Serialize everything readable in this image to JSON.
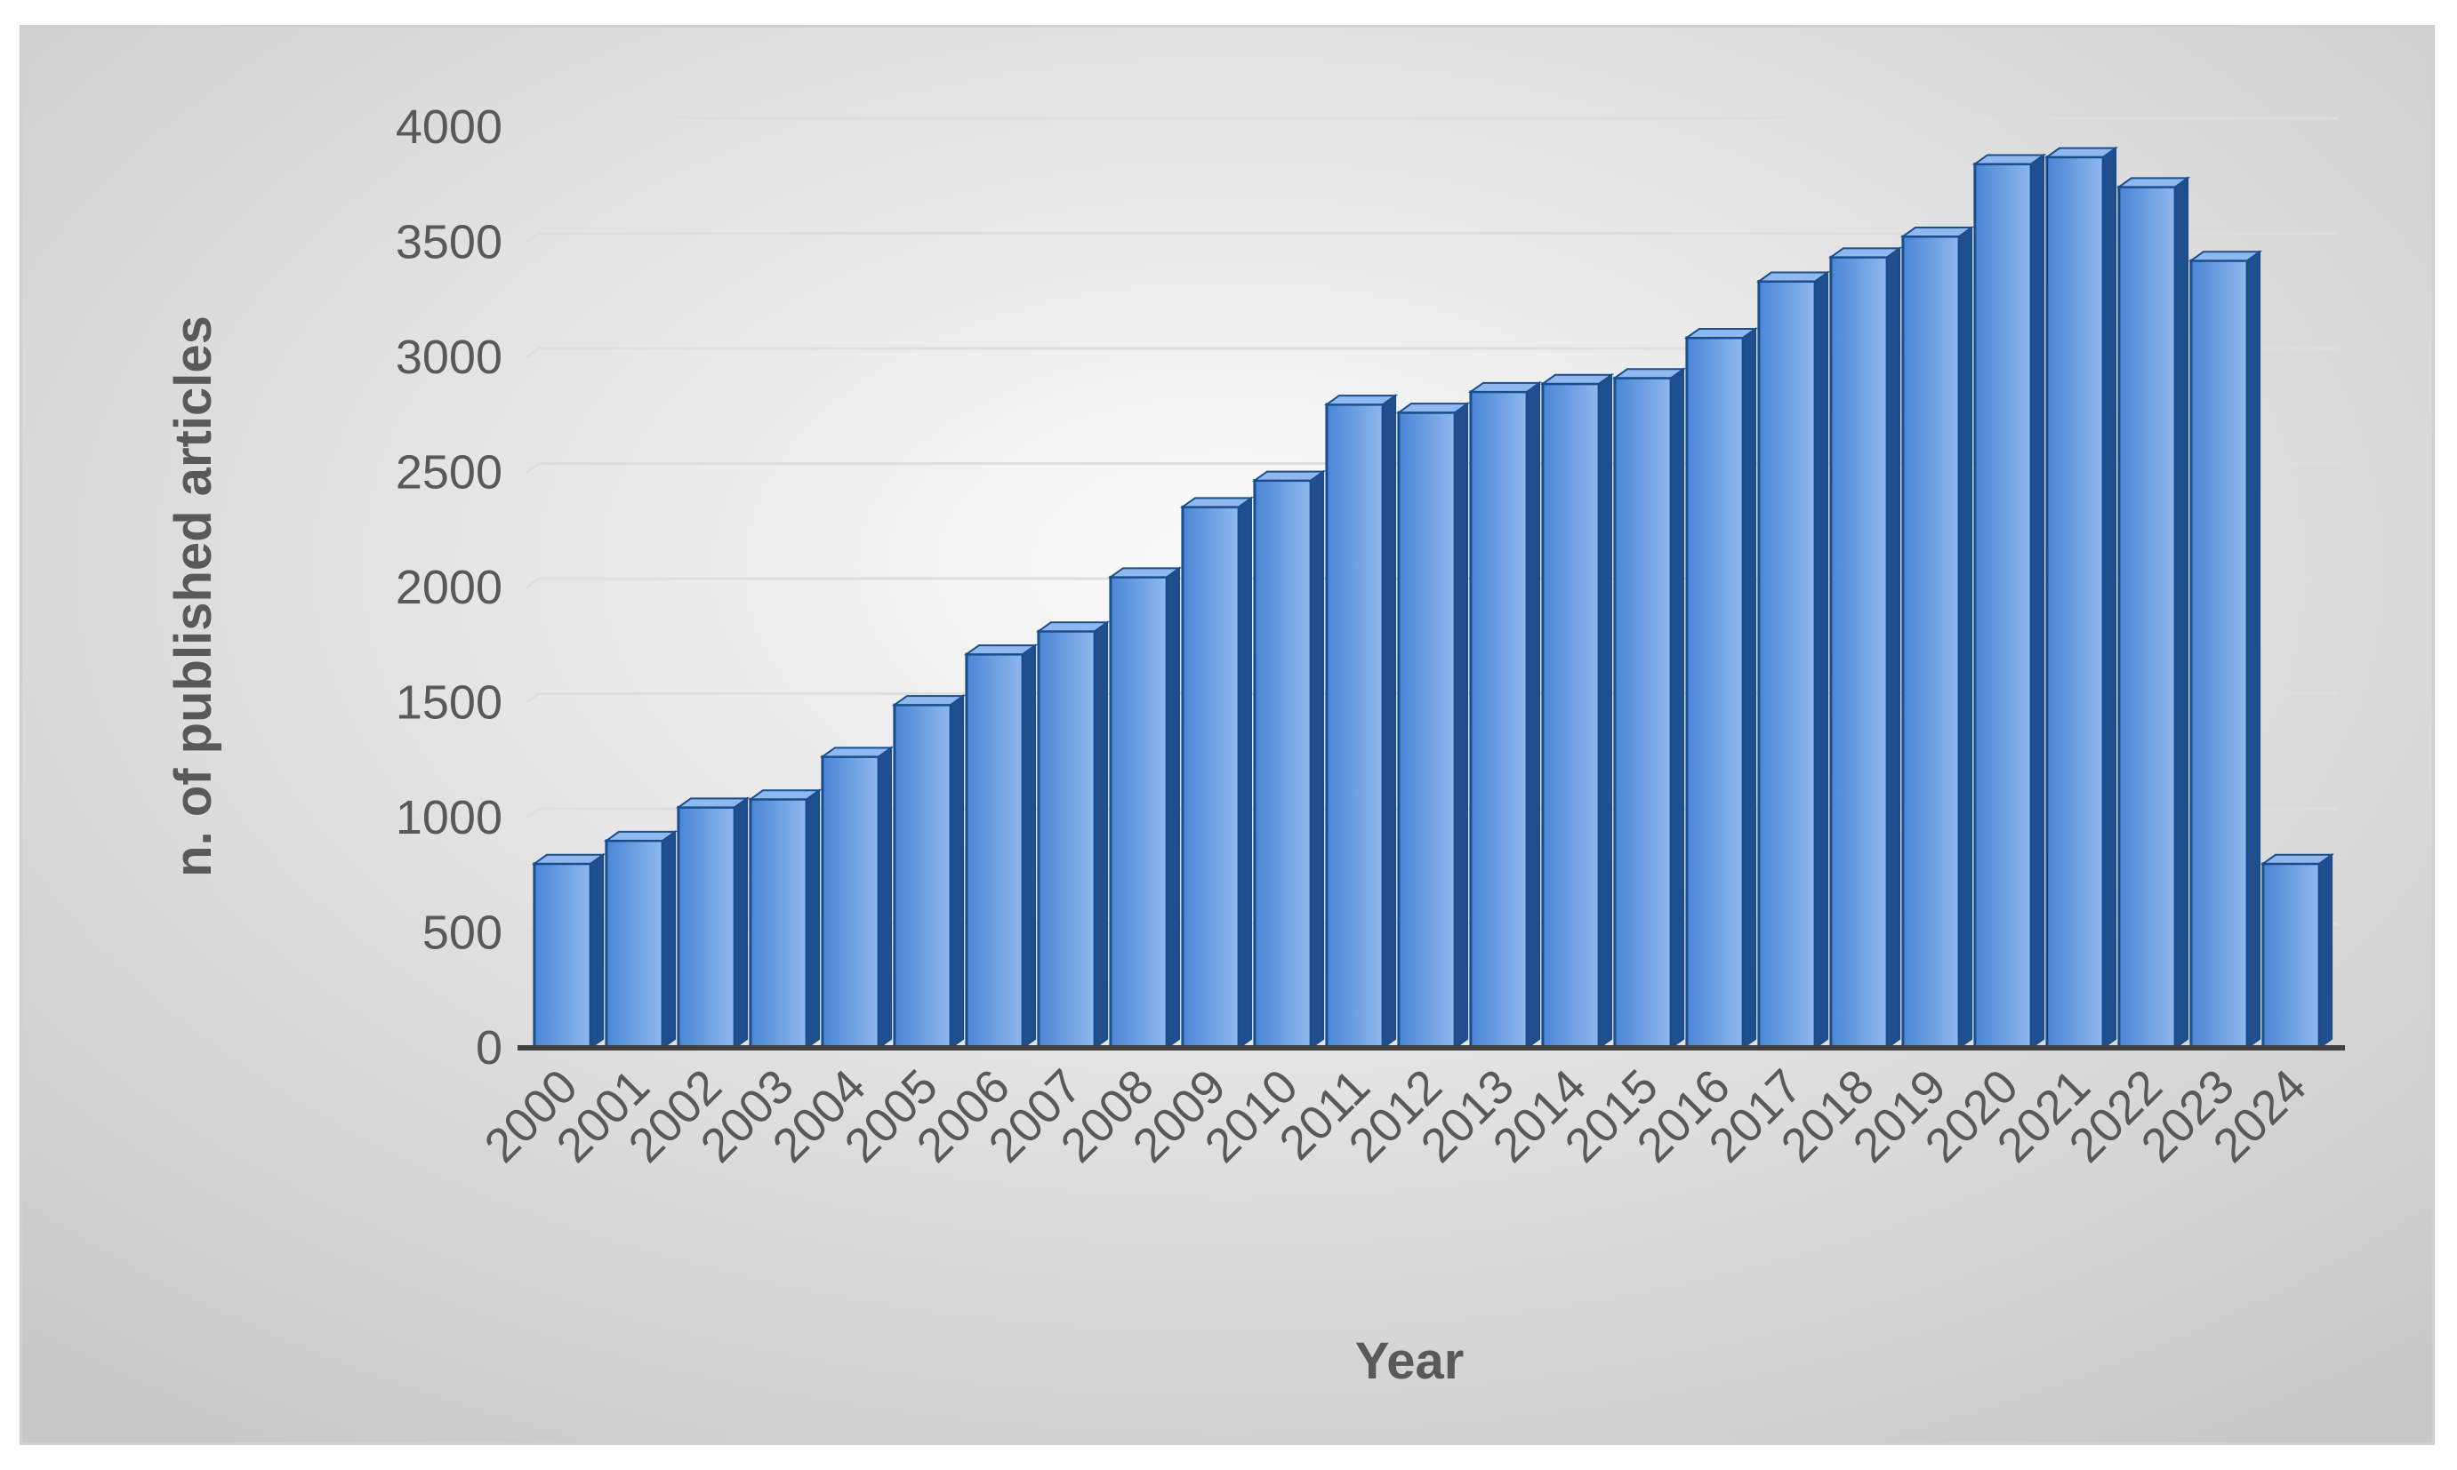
{
  "chart_data": {
    "type": "bar",
    "categories": [
      "2000",
      "2001",
      "2002",
      "2003",
      "2004",
      "2005",
      "2006",
      "2007",
      "2008",
      "2009",
      "2010",
      "2011",
      "2012",
      "2013",
      "2014",
      "2015",
      "2016",
      "2017",
      "2018",
      "2019",
      "2020",
      "2021",
      "2022",
      "2023",
      "2024"
    ],
    "series": [
      {
        "values": [
          800,
          900,
          1045,
          1080,
          1265,
          1490,
          1710,
          1810,
          2045,
          2350,
          2465,
          2795,
          2760,
          2850,
          2885,
          2910,
          3085,
          3330,
          3435,
          3525,
          3840,
          3870,
          3740,
          3420,
          800
        ]
      }
    ],
    "xlabel": "Year",
    "ylabel": "n. of published articles",
    "ylim": [
      0,
      4000
    ],
    "yticks": [
      0,
      500,
      1000,
      1500,
      2000,
      2500,
      3000,
      3500,
      4000
    ],
    "grid": true,
    "legend": "none",
    "colors": {
      "bar_front": "#4a86d6",
      "bar_side": "#1f4f8f",
      "bar_top": "#8fb8ee",
      "bar_edge": "#1a4d8c",
      "gridline": "#dedede",
      "axis": "#404040",
      "text": "#595959",
      "bg_light": "#fbfbfb",
      "bg_dark": "#c8c8c8"
    }
  }
}
